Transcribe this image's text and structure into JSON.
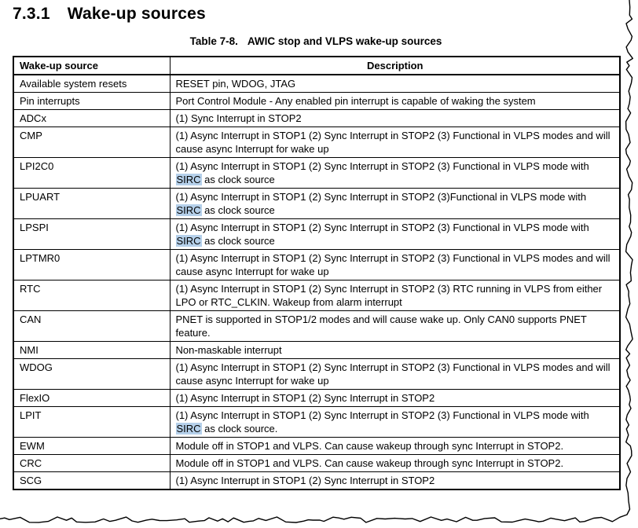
{
  "page": {
    "section_number": "7.3.1",
    "section_title": "Wake-up sources"
  },
  "table": {
    "caption_label": "Table 7-8.",
    "caption_title": "AWIC stop and VLPS wake-up sources",
    "columns": [
      "Wake-up source",
      "Description"
    ],
    "rows": [
      {
        "source": "Available system resets",
        "description": [
          {
            "text": "RESET pin, WDOG, JTAG",
            "highlight": false
          }
        ]
      },
      {
        "source": "Pin interrupts",
        "description": [
          {
            "text": "Port Control Module - Any enabled pin interrupt is capable of waking the system",
            "highlight": false
          }
        ]
      },
      {
        "source": "ADCx",
        "description": [
          {
            "text": "(1) Sync Interrupt in STOP2",
            "highlight": false
          }
        ]
      },
      {
        "source": "CMP",
        "description": [
          {
            "text": "(1) Async Interrupt in STOP1 (2) Sync Interrupt in STOP2 (3) Functional in VLPS modes and will cause async Interrupt for wake up",
            "highlight": false
          }
        ]
      },
      {
        "source": "LPI2C0",
        "description": [
          {
            "text": "(1) Async Interrupt in STOP1 (2) Sync Interrupt in STOP2 (3) Functional in VLPS mode with ",
            "highlight": false
          },
          {
            "text": "SIRC",
            "highlight": true
          },
          {
            "text": " as clock source",
            "highlight": false
          }
        ]
      },
      {
        "source": "LPUART",
        "description": [
          {
            "text": "(1) Async Interrupt in STOP1 (2) Sync Interrupt in STOP2 (3)Functional in VLPS mode with ",
            "highlight": false
          },
          {
            "text": "SIRC",
            "highlight": true
          },
          {
            "text": " as clock source",
            "highlight": false
          }
        ]
      },
      {
        "source": "LPSPI",
        "description": [
          {
            "text": "(1) Async Interrupt in STOP1 (2) Sync Interrupt in STOP2 (3) Functional in VLPS mode with ",
            "highlight": false
          },
          {
            "text": "SIRC",
            "highlight": true
          },
          {
            "text": " as clock source",
            "highlight": false
          }
        ]
      },
      {
        "source": "LPTMR0",
        "description": [
          {
            "text": "(1) Async Interrupt in STOP1 (2) Sync Interrupt in STOP2 (3) Functional in VLPS modes and will cause async Interrupt for wake up",
            "highlight": false
          }
        ]
      },
      {
        "source": "RTC",
        "description": [
          {
            "text": "(1) Async Interrupt in STOP1 (2) Sync Interrupt in STOP2 (3) RTC running in VLPS from either LPO or RTC_CLKIN. Wakeup from alarm interrupt",
            "highlight": false
          }
        ]
      },
      {
        "source": "CAN",
        "description": [
          {
            "text": "PNET is supported in STOP1/2 modes and will cause wake up. Only CAN0 supports PNET feature.",
            "highlight": false
          }
        ]
      },
      {
        "source": "NMI",
        "description": [
          {
            "text": "Non-maskable interrupt",
            "highlight": false
          }
        ]
      },
      {
        "source": "WDOG",
        "description": [
          {
            "text": "(1) Async Interrupt in STOP1 (2) Sync Interrupt in STOP2 (3) Functional in VLPS modes and will cause async Interrupt for wake up",
            "highlight": false
          }
        ]
      },
      {
        "source": "FlexIO",
        "description": [
          {
            "text": "(1) Async Interrupt in STOP1 (2) Sync Interrupt in STOP2",
            "highlight": false
          }
        ]
      },
      {
        "source": "LPIT",
        "description": [
          {
            "text": "(1) Async Interrupt in STOP1 (2) Sync Interrupt in STOP2 (3) Functional in VLPS mode with ",
            "highlight": false
          },
          {
            "text": "SIRC",
            "highlight": true
          },
          {
            "text": " as clock source.",
            "highlight": false
          }
        ]
      },
      {
        "source": "EWM",
        "description": [
          {
            "text": "Module off in STOP1 and VLPS. Can cause wakeup through sync Interrupt in STOP2.",
            "highlight": false
          }
        ]
      },
      {
        "source": "CRC",
        "description": [
          {
            "text": "Module off in STOP1 and VLPS. Can cause wakeup through sync Interrupt in STOP2.",
            "highlight": false
          }
        ]
      },
      {
        "source": "SCG",
        "description": [
          {
            "text": "(1) Async Interrupt in STOP1 (2) Sync Interrupt in STOP2",
            "highlight": false
          }
        ]
      }
    ]
  },
  "colors": {
    "sirc_highlight": "#b5d0ea",
    "border": "#000000",
    "text": "#000000"
  }
}
